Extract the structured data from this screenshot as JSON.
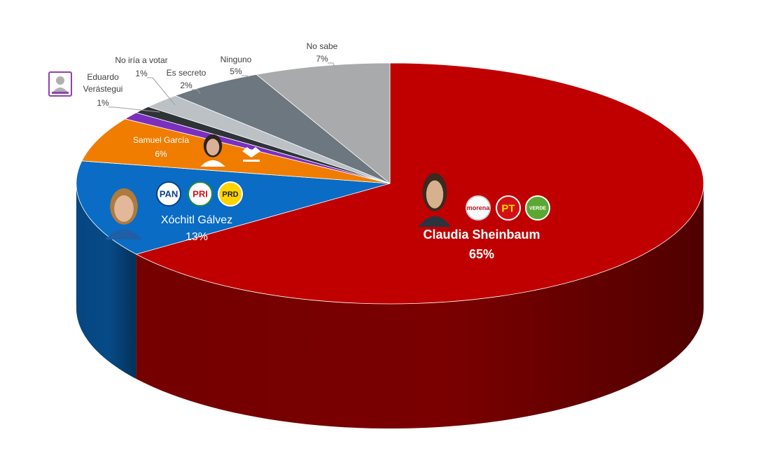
{
  "chart_data": {
    "type": "pie",
    "title": "",
    "slices": [
      {
        "name": "Claudia Sheinbaum",
        "value": 65,
        "value_label": "65%",
        "color": "#c00000",
        "side_color": "#7a0000",
        "parties": [
          "morena",
          "PT",
          "VERDE"
        ],
        "text_color": "#ffffff"
      },
      {
        "name": "Xóchitl Gálvez",
        "value": 13,
        "value_label": "13%",
        "color": "#0a6cc4",
        "side_color": "#064a87",
        "parties": [
          "PAN",
          "PRI",
          "PRD"
        ],
        "text_color": "#ffffff"
      },
      {
        "name": "Samuel García",
        "value": 6,
        "value_label": "6%",
        "color": "#f07d00",
        "side_color": "#a85700",
        "parties": [
          "movimiento-ciudadano"
        ],
        "text_color": "#ffffff"
      },
      {
        "name": "Eduardo Verástegui",
        "value": 1,
        "value_label": "1%",
        "color": "#7b2fbe",
        "side_color": "#4e1d78",
        "parties": [
          "candidato-independiente"
        ],
        "text_color": "#404040"
      },
      {
        "name": "No iría a votar",
        "value": 1,
        "value_label": "1%",
        "color": "#2e3338",
        "side_color": "#1a1d20",
        "parties": [],
        "text_color": "#404040"
      },
      {
        "name": "Es secreto",
        "value": 2,
        "value_label": "2%",
        "color": "#bcc1c6",
        "side_color": "#7c8085",
        "parties": [],
        "text_color": "#404040"
      },
      {
        "name": "Ninguno",
        "value": 5,
        "value_label": "5%",
        "color": "#6d7780",
        "side_color": "#454c52",
        "parties": [],
        "text_color": "#404040"
      },
      {
        "name": "No sabe",
        "value": 7,
        "value_label": "7%",
        "color": "#a8aaab",
        "side_color": "#6c6e70",
        "parties": [],
        "text_color": "#404040"
      }
    ]
  }
}
